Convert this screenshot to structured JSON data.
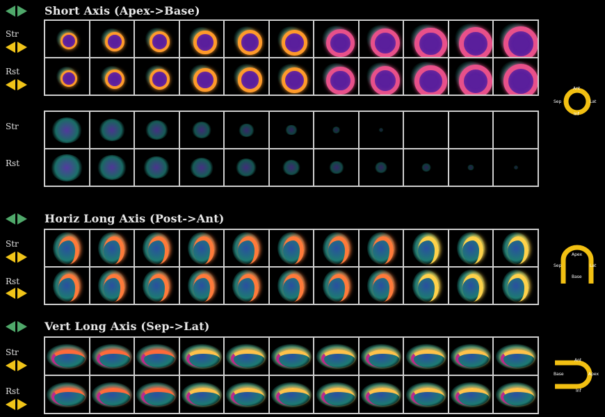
{
  "colors": {
    "nav_green": "#4fa86a",
    "nav_yellow": "#f0c419",
    "grid_border": "#cfcfcf",
    "bg": "#000000",
    "legend_yellow": "#f2c012"
  },
  "sections": [
    {
      "id": "short-axis",
      "title": "Short Axis (Apex->Base)",
      "row_labels": [
        "Str",
        "Rst",
        "Str",
        "Rst"
      ],
      "legend": {
        "top": "Ant",
        "left": "Sep",
        "right": "Lat",
        "bottom": "Inf"
      }
    },
    {
      "id": "horiz-long-axis",
      "title": "Horiz Long Axis (Post->Ant)",
      "row_labels": [
        "Str",
        "Rst"
      ],
      "legend": {
        "top": "Apex",
        "left": "Sep",
        "right": "Lat",
        "bottom": "Base"
      }
    },
    {
      "id": "vert-long-axis",
      "title": "Vert Long Axis (Sep->Lat)",
      "row_labels": [
        "Str",
        "Rst"
      ],
      "legend": {
        "top": "Ant",
        "left": "Base",
        "right": "Apex",
        "bottom": "Inf"
      }
    }
  ]
}
